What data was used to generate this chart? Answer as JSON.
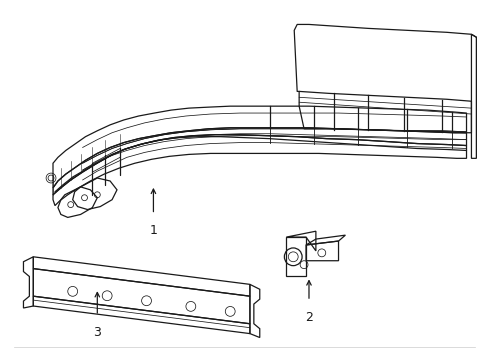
{
  "bg_color": "#ffffff",
  "line_color": "#1a1a1a",
  "lw": 0.9,
  "tlw": 0.55,
  "figsize": [
    4.89,
    3.6
  ],
  "dpi": 100
}
